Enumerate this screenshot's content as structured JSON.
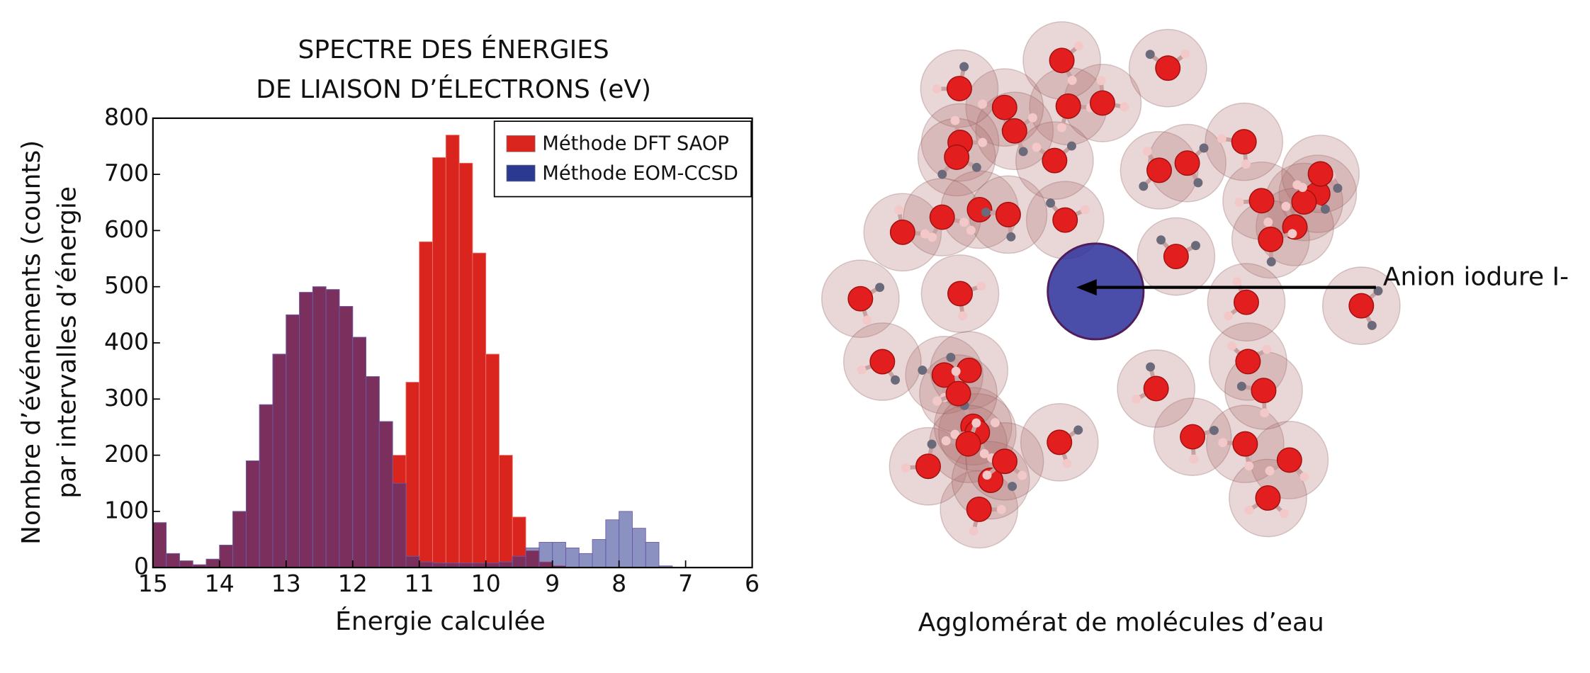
{
  "chart_data": {
    "type": "histogram",
    "title": [
      "SPECTRE DES ÉNERGIES",
      "DE LIAISON D’ÉLECTRONS (eV)"
    ],
    "xlabel": "Énergie calculée",
    "ylabel": [
      "Nombre d’événements (counts)",
      "par intervalles d’énergie"
    ],
    "bins": [
      15,
      14.8,
      14.6,
      14.4,
      14.2,
      14,
      13.8,
      13.6,
      13.4,
      13.2,
      13,
      12.8,
      12.6,
      12.4,
      12.2,
      12,
      11.8,
      11.6,
      11.4,
      11.2,
      11,
      10.8,
      10.6,
      10.4,
      10.2,
      10,
      9.8,
      9.6,
      9.4,
      9.2,
      9,
      8.8,
      8.6,
      8.4,
      8.2,
      8,
      7.8,
      7.6,
      7.4,
      7.2,
      7
    ],
    "series": [
      {
        "name": "Méthode DFT SAOP",
        "color": "#d9251d",
        "values": [
          80,
          25,
          12,
          5,
          15,
          40,
          100,
          190,
          290,
          380,
          450,
          490,
          500,
          495,
          465,
          410,
          340,
          260,
          200,
          330,
          580,
          730,
          770,
          720,
          560,
          380,
          200,
          90,
          30,
          10,
          3,
          0,
          0,
          0,
          0,
          0,
          0,
          0,
          0,
          0
        ]
      },
      {
        "name": "Méthode EOM-CCSD",
        "color": "#2b3990",
        "values": [
          80,
          25,
          12,
          5,
          15,
          40,
          100,
          190,
          290,
          380,
          450,
          490,
          500,
          495,
          465,
          410,
          340,
          260,
          150,
          20,
          10,
          8,
          8,
          8,
          8,
          8,
          10,
          20,
          35,
          45,
          45,
          35,
          25,
          50,
          85,
          100,
          70,
          45,
          3,
          0
        ]
      }
    ],
    "xlim": [
      15,
      6
    ],
    "xticks": [
      15,
      14,
      13,
      12,
      11,
      10,
      9,
      8,
      7,
      6
    ],
    "ylim": [
      0,
      800
    ],
    "yticks": [
      0,
      100,
      200,
      300,
      400,
      500,
      600,
      700,
      800
    ],
    "grid": false,
    "legend": "upper right",
    "annotations": [
      "Anion iodure I-",
      "Agglomérat de molécules d’eau"
    ]
  }
}
